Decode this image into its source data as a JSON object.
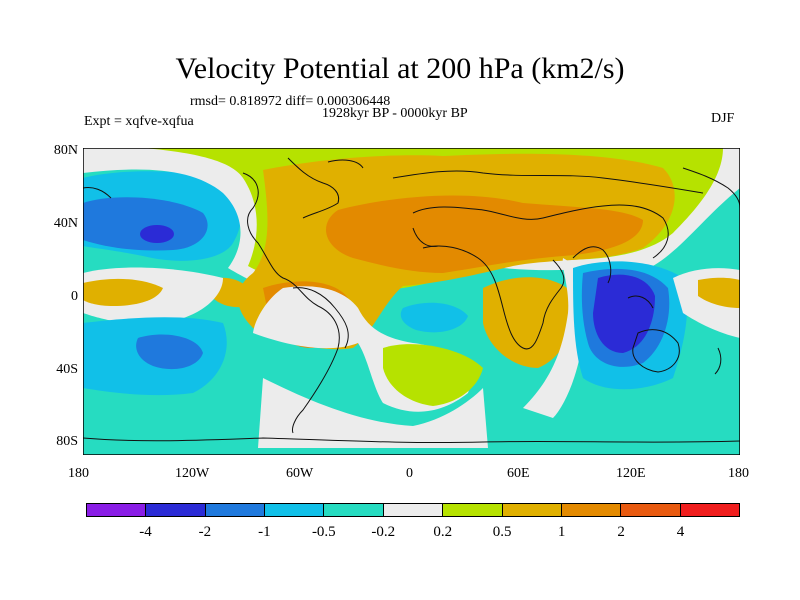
{
  "title": "Velocity Potential at 200 hPa (km2/s)",
  "stats": "rmsd= 0.818972 diff= 0.000306448",
  "expt": "Expt = xqfve-xqfua",
  "period": "1928kyr BP - 0000kyr BP",
  "season": "DJF",
  "lat_labels": [
    "80N",
    "40N",
    "0",
    "40S",
    "80S"
  ],
  "lon_labels": [
    "180",
    "120W",
    "60W",
    "0",
    "60E",
    "120E",
    "180"
  ],
  "colorbar": {
    "labels": [
      "-4",
      "-2",
      "-1",
      "-0.5",
      "-0.2",
      "0.2",
      "0.5",
      "1",
      "2",
      "4"
    ],
    "colors": [
      "#8a1de6",
      "#2b2bd6",
      "#1f79dd",
      "#11c0e8",
      "#26dcc1",
      "#ececec",
      "#b6e200",
      "#e0b000",
      "#e38a00",
      "#e85a10",
      "#f01e1e"
    ]
  }
}
